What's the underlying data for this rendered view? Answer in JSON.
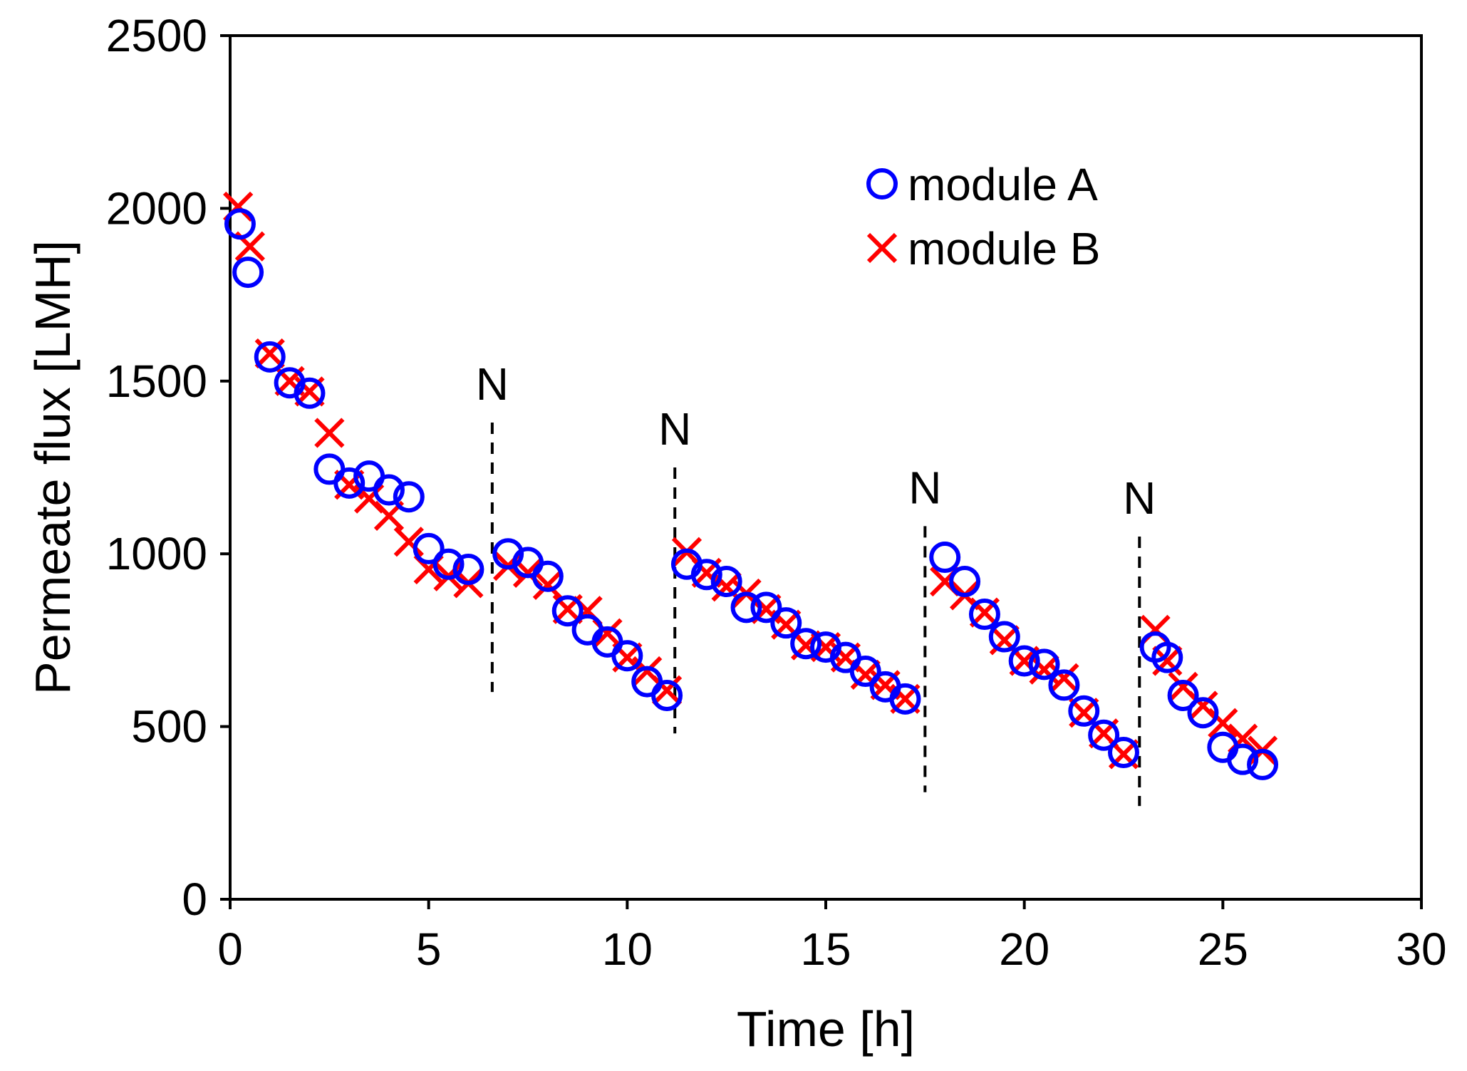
{
  "chart_data": {
    "type": "scatter",
    "title": "",
    "xlabel": "Time [h]",
    "ylabel": "Permeate flux [LMH]",
    "xlim": [
      0,
      30
    ],
    "ylim": [
      0,
      2500
    ],
    "xticks": [
      0,
      5,
      10,
      15,
      20,
      25,
      30
    ],
    "yticks": [
      0,
      500,
      1000,
      1500,
      2000,
      2500
    ],
    "grid": false,
    "legend_position": "top-right",
    "series": [
      {
        "name": "module A",
        "marker": "circle",
        "color": "#0000ff",
        "points": [
          [
            0.25,
            1955
          ],
          [
            0.45,
            1815
          ],
          [
            1.0,
            1570
          ],
          [
            1.5,
            1495
          ],
          [
            2.0,
            1465
          ],
          [
            2.5,
            1245
          ],
          [
            3.0,
            1205
          ],
          [
            3.5,
            1225
          ],
          [
            4.0,
            1185
          ],
          [
            4.5,
            1165
          ],
          [
            5.0,
            1015
          ],
          [
            5.5,
            970
          ],
          [
            6.0,
            955
          ],
          [
            7.0,
            1000
          ],
          [
            7.5,
            975
          ],
          [
            8.0,
            935
          ],
          [
            8.5,
            835
          ],
          [
            9.0,
            780
          ],
          [
            9.5,
            745
          ],
          [
            10.0,
            705
          ],
          [
            10.5,
            630
          ],
          [
            11.0,
            590
          ],
          [
            11.5,
            970
          ],
          [
            12.0,
            940
          ],
          [
            12.5,
            920
          ],
          [
            13.0,
            845
          ],
          [
            13.5,
            845
          ],
          [
            14.0,
            800
          ],
          [
            14.5,
            740
          ],
          [
            15.0,
            730
          ],
          [
            15.5,
            700
          ],
          [
            16.0,
            660
          ],
          [
            16.5,
            615
          ],
          [
            17.0,
            580
          ],
          [
            18.0,
            990
          ],
          [
            18.5,
            920
          ],
          [
            19.0,
            825
          ],
          [
            19.5,
            760
          ],
          [
            20.0,
            690
          ],
          [
            20.5,
            680
          ],
          [
            21.0,
            620
          ],
          [
            21.5,
            545
          ],
          [
            22.0,
            475
          ],
          [
            22.5,
            425
          ],
          [
            23.3,
            730
          ],
          [
            23.6,
            700
          ],
          [
            24.0,
            590
          ],
          [
            24.5,
            540
          ],
          [
            25.0,
            440
          ],
          [
            25.5,
            405
          ],
          [
            26.0,
            390
          ]
        ]
      },
      {
        "name": "module B",
        "marker": "x",
        "color": "#ff0000",
        "points": [
          [
            0.2,
            2005
          ],
          [
            0.5,
            1890
          ],
          [
            1.0,
            1580
          ],
          [
            1.5,
            1500
          ],
          [
            2.0,
            1470
          ],
          [
            2.5,
            1350
          ],
          [
            3.0,
            1200
          ],
          [
            3.5,
            1160
          ],
          [
            4.0,
            1110
          ],
          [
            4.5,
            1035
          ],
          [
            5.0,
            955
          ],
          [
            5.5,
            935
          ],
          [
            6.0,
            915
          ],
          [
            7.0,
            965
          ],
          [
            7.5,
            945
          ],
          [
            8.0,
            910
          ],
          [
            8.5,
            840
          ],
          [
            9.0,
            835
          ],
          [
            9.5,
            770
          ],
          [
            10.0,
            700
          ],
          [
            10.5,
            660
          ],
          [
            11.0,
            605
          ],
          [
            11.5,
            1005
          ],
          [
            12.0,
            945
          ],
          [
            12.5,
            905
          ],
          [
            13.0,
            885
          ],
          [
            13.5,
            840
          ],
          [
            14.0,
            795
          ],
          [
            14.5,
            735
          ],
          [
            15.0,
            730
          ],
          [
            15.5,
            700
          ],
          [
            16.0,
            650
          ],
          [
            16.5,
            620
          ],
          [
            17.0,
            580
          ],
          [
            18.0,
            920
          ],
          [
            18.5,
            880
          ],
          [
            19.0,
            830
          ],
          [
            19.5,
            750
          ],
          [
            20.0,
            690
          ],
          [
            20.5,
            665
          ],
          [
            21.0,
            640
          ],
          [
            21.5,
            540
          ],
          [
            22.0,
            480
          ],
          [
            22.5,
            420
          ],
          [
            23.3,
            780
          ],
          [
            23.6,
            690
          ],
          [
            24.0,
            615
          ],
          [
            24.5,
            560
          ],
          [
            25.0,
            510
          ],
          [
            25.5,
            465
          ],
          [
            26.0,
            430
          ]
        ]
      }
    ],
    "annotations": [
      {
        "text": "N",
        "x": 6.6,
        "y_top": 1380,
        "y_bottom": 600,
        "style": "dashed"
      },
      {
        "text": "N",
        "x": 11.2,
        "y_top": 1250,
        "y_bottom": 480,
        "style": "dashed"
      },
      {
        "text": "N",
        "x": 17.5,
        "y_top": 1080,
        "y_bottom": 310,
        "style": "dashed"
      },
      {
        "text": "N",
        "x": 22.9,
        "y_top": 1050,
        "y_bottom": 270,
        "style": "dashed"
      }
    ]
  }
}
